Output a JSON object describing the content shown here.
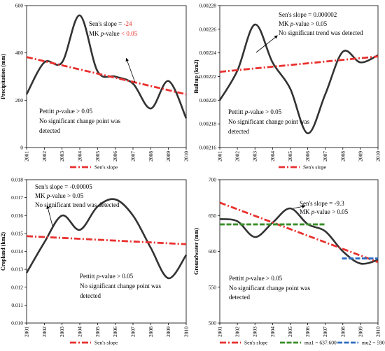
{
  "chart_data": [
    {
      "type": "line",
      "ylabel": "Precipitation (mm)",
      "ylim": [
        0,
        800
      ],
      "yticks": [
        "0",
        "200",
        "400",
        "600"
      ],
      "x": [
        "2001",
        "2002",
        "2003",
        "2004",
        "2005",
        "2006",
        "2007",
        "2008",
        "2009",
        "2010"
      ],
      "series": [
        {
          "values": [
            300,
            480,
            480,
            745,
            430,
            400,
            360,
            220,
            375,
            165
          ],
          "color": "#333333"
        },
        {
          "name": "Sen's slope",
          "values": [
            510,
            485,
            465,
            440,
            420,
            400,
            375,
            345,
            320,
            300
          ],
          "color": "#e8312f"
        }
      ],
      "annotations": [
        {
          "pre": "Sen's slope = ",
          "val": "-24",
          "red": true
        },
        {
          "pre": "MK ",
          "italic": "p",
          "mid": "-value ",
          "val": "< 0.05",
          "red": true
        },
        {
          "pre": "Pettitt ",
          "italic": "p",
          "mid": "-value > 0.05"
        },
        {
          "pre": "No significant change point was"
        },
        {
          "pre": "detected"
        }
      ],
      "legend": [
        {
          "label": "Sen's slope",
          "color": "#e8312f"
        }
      ]
    },
    {
      "type": "line",
      "ylabel": "Builtup (km2)",
      "ylim": [
        0.00216,
        0.00228
      ],
      "yticks": [
        "0.00216",
        "0.00218",
        "0.00220",
        "0.00222",
        "0.00224",
        "0.00226",
        "0.00228"
      ],
      "x": [
        "2001",
        "2002",
        "2003",
        "2004",
        "2005",
        "2006",
        "2007",
        "2008",
        "2009",
        "2010"
      ],
      "series": [
        {
          "values": [
            0.0022,
            0.002225,
            0.002264,
            0.002232,
            0.00221,
            0.002172,
            0.002205,
            0.002241,
            0.002232,
            0.002238
          ],
          "color": "#333333"
        },
        {
          "name": "Sen's slope",
          "values": [
            0.002224,
            0.002225,
            0.002226,
            0.002227,
            0.002228,
            0.00223,
            0.002231,
            0.002233,
            0.002235,
            0.002237
          ],
          "color": "#e8312f"
        }
      ],
      "annotations": [
        {
          "pre": "Sen's slope = 0.000002"
        },
        {
          "pre": "MK ",
          "italic": "p",
          "mid": "-value > 0.05"
        },
        {
          "pre": "No significant trend was detected"
        },
        {
          "pre": "Pettitt ",
          "italic": "p",
          "mid": "-value > 0.05"
        },
        {
          "pre": "No significant change point was"
        },
        {
          "pre": "detected"
        }
      ],
      "legend": [
        {
          "label": "Sen's slope",
          "color": "#e8312f"
        }
      ]
    },
    {
      "type": "line",
      "ylabel": "Cropland (km2)",
      "ylim": [
        0.01,
        0.018
      ],
      "yticks": [
        "0.010",
        "0.011",
        "0.012",
        "0.013",
        "0.014",
        "0.015",
        "0.016",
        "0.017",
        "0.018"
      ],
      "x": [
        "2001",
        "2002",
        "2003",
        "2004",
        "2005",
        "2006",
        "2007",
        "2008",
        "2009",
        "2010"
      ],
      "series": [
        {
          "values": [
            0.0128,
            0.0145,
            0.016,
            0.0152,
            0.0165,
            0.0169,
            0.016,
            0.0142,
            0.0125,
            0.0138
          ],
          "color": "#333333"
        },
        {
          "name": "Sen's slope",
          "values": [
            0.01485,
            0.0148,
            0.01475,
            0.0147,
            0.01465,
            0.0146,
            0.01455,
            0.0145,
            0.01445,
            0.0144
          ],
          "color": "#e8312f"
        }
      ],
      "annotations": [
        {
          "pre": "Sen's slope = -0.00005"
        },
        {
          "pre": "MK ",
          "italic": "p",
          "mid": "-value > 0.05"
        },
        {
          "pre": "No significant trend was detected"
        },
        {
          "pre": "Pettitt ",
          "italic": "p",
          "mid": "-value > 0.05"
        },
        {
          "pre": "No significant change point was"
        },
        {
          "pre": "detected"
        }
      ],
      "legend": [
        {
          "label": "Sen's slope",
          "color": "#e8312f"
        }
      ]
    },
    {
      "type": "line",
      "ylabel": "Groundwater (mm)",
      "ylim": [
        500,
        700
      ],
      "yticks": [
        "500",
        "550",
        "600",
        "650",
        "700"
      ],
      "x": [
        "2001",
        "2002",
        "2003",
        "2004",
        "2005",
        "2006",
        "2007",
        "2008",
        "2009",
        "2010"
      ],
      "series": [
        {
          "values": [
            645,
            642,
            620,
            640,
            660,
            638,
            628,
            600,
            583,
            588
          ],
          "color": "#333333"
        },
        {
          "name": "Sen's slope",
          "values": [
            668,
            658,
            648,
            638,
            628,
            618,
            607,
            597,
            589,
            585
          ],
          "color": "#e8312f"
        },
        {
          "name": "mu1 = 637.600",
          "values": [
            637.6,
            637.6,
            637.6,
            637.6,
            637.6,
            637.6,
            637.6,
            null,
            null,
            null
          ],
          "color": "#3a8f2a"
        },
        {
          "name": "mu2 = 590.067",
          "values": [
            null,
            null,
            null,
            null,
            null,
            null,
            null,
            590.067,
            590.067,
            590.067
          ],
          "color": "#2f6cc0"
        }
      ],
      "annotations": [
        {
          "pre": "Sen's slope = -9.3"
        },
        {
          "pre": "MK ",
          "italic": "p",
          "mid": "-value > 0.05"
        },
        {
          "pre": "Pettitt ",
          "italic": "p",
          "mid": "-value > 0.05"
        },
        {
          "pre": "No significant change point was"
        },
        {
          "pre": "detected"
        }
      ],
      "legend": [
        {
          "label": "Sen's slope",
          "color": "#e8312f"
        },
        {
          "label": "mu1 = 637.600",
          "color": "#3a8f2a"
        },
        {
          "label": "mu2 = 590.067",
          "color": "#2f6cc0"
        }
      ]
    }
  ]
}
